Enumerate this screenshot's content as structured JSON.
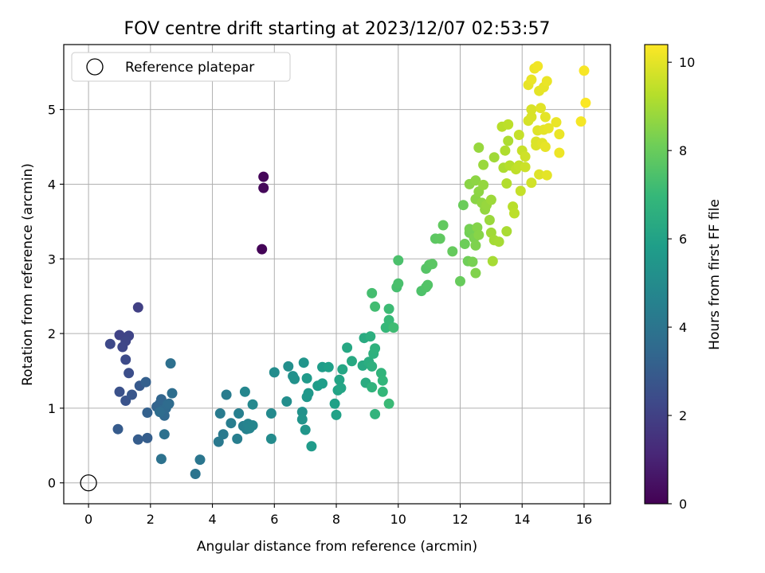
{
  "chart_data": {
    "type": "scatter",
    "title": "FOV centre drift starting at 2023/12/07 02:53:57",
    "xlabel": "Angular distance from reference (arcmin)",
    "ylabel": "Rotation from reference (arcmin)",
    "xlim": [
      -0.8,
      16.85
    ],
    "ylim": [
      -0.28,
      5.87
    ],
    "xticks": [
      0,
      2,
      4,
      6,
      8,
      10,
      12,
      14,
      16
    ],
    "yticks": [
      0,
      1,
      2,
      3,
      4,
      5
    ],
    "grid": true,
    "legend": {
      "placement": "top-left",
      "label": "Reference platepar",
      "marker": "open-circle"
    },
    "reference_point": {
      "x": 0,
      "y": 0
    },
    "colorbar": {
      "label": "Hours from first FF file",
      "range": [
        0,
        10.4
      ],
      "ticks": [
        0,
        2,
        4,
        6,
        8,
        10
      ],
      "colormap": "viridis"
    },
    "series": [
      {
        "points": [
          [
            5.6,
            3.13,
            0.1
          ],
          [
            5.65,
            4.1,
            0.15
          ],
          [
            5.65,
            3.95,
            0.2
          ],
          [
            1.6,
            2.35,
            2.0
          ],
          [
            1.0,
            1.98,
            2.1
          ],
          [
            1.3,
            1.97,
            2.15
          ],
          [
            1.2,
            1.9,
            2.2
          ],
          [
            1.1,
            1.82,
            2.25
          ],
          [
            0.7,
            1.86,
            2.3
          ],
          [
            1.2,
            1.65,
            2.4
          ],
          [
            1.3,
            1.47,
            2.5
          ],
          [
            1.0,
            1.22,
            2.6
          ],
          [
            1.2,
            1.1,
            2.7
          ],
          [
            1.4,
            1.18,
            2.8
          ],
          [
            1.65,
            1.3,
            2.9
          ],
          [
            0.95,
            0.72,
            3.0
          ],
          [
            1.6,
            0.58,
            3.05
          ],
          [
            1.9,
            0.6,
            3.1
          ],
          [
            1.85,
            1.35,
            3.15
          ],
          [
            1.9,
            0.94,
            3.2
          ],
          [
            2.2,
            1.02,
            3.3
          ],
          [
            2.3,
            1.06,
            3.35
          ],
          [
            2.35,
            1.12,
            3.4
          ],
          [
            2.4,
            0.98,
            3.45
          ],
          [
            2.45,
            0.9,
            3.5
          ],
          [
            2.5,
            1.0,
            3.55
          ],
          [
            2.55,
            1.05,
            3.6
          ],
          [
            2.6,
            1.06,
            3.65
          ],
          [
            2.3,
            0.95,
            3.7
          ],
          [
            2.7,
            1.2,
            3.75
          ],
          [
            2.65,
            1.6,
            3.8
          ],
          [
            2.45,
            0.65,
            3.85
          ],
          [
            2.35,
            0.32,
            3.9
          ],
          [
            3.45,
            0.12,
            4.0
          ],
          [
            3.6,
            0.31,
            4.1
          ],
          [
            4.2,
            0.55,
            4.2
          ],
          [
            4.35,
            0.65,
            4.25
          ],
          [
            4.25,
            0.93,
            4.3
          ],
          [
            4.45,
            1.18,
            4.35
          ],
          [
            4.6,
            0.8,
            4.4
          ],
          [
            4.8,
            0.59,
            4.45
          ],
          [
            4.85,
            0.93,
            4.5
          ],
          [
            5.0,
            0.76,
            4.55
          ],
          [
            5.1,
            0.72,
            4.6
          ],
          [
            5.15,
            0.79,
            4.65
          ],
          [
            5.2,
            0.73,
            4.7
          ],
          [
            5.3,
            0.77,
            4.75
          ],
          [
            5.05,
            1.22,
            4.8
          ],
          [
            5.3,
            1.05,
            4.85
          ],
          [
            5.9,
            0.93,
            4.95
          ],
          [
            5.9,
            0.59,
            5.0
          ],
          [
            6.0,
            1.48,
            5.05
          ],
          [
            6.4,
            1.09,
            5.1
          ],
          [
            6.45,
            1.56,
            5.15
          ],
          [
            6.6,
            1.43,
            5.2
          ],
          [
            6.65,
            1.39,
            5.25
          ],
          [
            6.9,
            0.95,
            5.3
          ],
          [
            6.9,
            0.85,
            5.35
          ],
          [
            6.95,
            1.61,
            5.4
          ],
          [
            7.0,
            0.71,
            5.45
          ],
          [
            7.05,
            1.15,
            5.5
          ],
          [
            7.1,
            1.2,
            5.55
          ],
          [
            7.05,
            1.4,
            5.6
          ],
          [
            7.2,
            0.49,
            5.65
          ],
          [
            7.4,
            1.3,
            5.7
          ],
          [
            7.55,
            1.55,
            5.75
          ],
          [
            7.55,
            1.33,
            5.8
          ],
          [
            7.75,
            1.55,
            5.85
          ],
          [
            7.95,
            1.06,
            5.9
          ],
          [
            8.0,
            0.91,
            5.95
          ],
          [
            8.05,
            1.24,
            6.0
          ],
          [
            8.1,
            1.38,
            6.05
          ],
          [
            8.15,
            1.27,
            6.1
          ],
          [
            8.2,
            1.52,
            6.15
          ],
          [
            8.35,
            1.81,
            6.2
          ],
          [
            8.5,
            1.63,
            6.25
          ],
          [
            8.85,
            1.57,
            6.3
          ],
          [
            8.9,
            1.94,
            6.35
          ],
          [
            8.95,
            1.34,
            6.4
          ],
          [
            9.05,
            1.62,
            6.45
          ],
          [
            9.1,
            1.96,
            6.5
          ],
          [
            9.15,
            1.56,
            6.55
          ],
          [
            9.2,
            1.73,
            6.6
          ],
          [
            9.25,
            1.8,
            6.65
          ],
          [
            9.15,
            1.28,
            6.7
          ],
          [
            9.25,
            0.92,
            6.75
          ],
          [
            9.45,
            1.47,
            6.8
          ],
          [
            9.5,
            1.37,
            6.85
          ],
          [
            9.5,
            1.22,
            6.9
          ],
          [
            9.6,
            2.08,
            6.95
          ],
          [
            9.7,
            2.18,
            7.0
          ],
          [
            9.7,
            1.06,
            7.05
          ],
          [
            9.7,
            2.33,
            7.1
          ],
          [
            9.85,
            2.08,
            7.15
          ],
          [
            9.25,
            2.36,
            7.2
          ],
          [
            9.15,
            2.54,
            7.25
          ],
          [
            9.95,
            2.62,
            7.3
          ],
          [
            10.0,
            2.67,
            7.35
          ],
          [
            10.0,
            2.98,
            7.4
          ],
          [
            10.75,
            2.57,
            7.45
          ],
          [
            10.9,
            2.62,
            7.5
          ],
          [
            10.95,
            2.65,
            7.55
          ],
          [
            10.9,
            2.87,
            7.6
          ],
          [
            11.0,
            2.92,
            7.65
          ],
          [
            11.1,
            2.93,
            7.7
          ],
          [
            11.2,
            3.27,
            7.75
          ],
          [
            11.35,
            3.27,
            7.8
          ],
          [
            11.45,
            3.45,
            7.85
          ],
          [
            11.75,
            3.1,
            7.9
          ],
          [
            12.0,
            2.7,
            7.95
          ],
          [
            12.1,
            3.72,
            8.0
          ],
          [
            12.15,
            3.2,
            8.05
          ],
          [
            12.25,
            2.97,
            8.1
          ],
          [
            12.3,
            3.35,
            8.15
          ],
          [
            12.3,
            3.4,
            8.2
          ],
          [
            12.4,
            2.96,
            8.25
          ],
          [
            12.45,
            3.28,
            8.3
          ],
          [
            12.5,
            3.18,
            8.35
          ],
          [
            12.5,
            2.81,
            8.4
          ],
          [
            12.55,
            3.42,
            8.45
          ],
          [
            12.6,
            3.32,
            8.5
          ],
          [
            12.5,
            3.8,
            8.55
          ],
          [
            12.6,
            3.9,
            8.6
          ],
          [
            12.7,
            3.75,
            8.65
          ],
          [
            12.8,
            3.66,
            8.7
          ],
          [
            12.85,
            3.72,
            8.75
          ],
          [
            12.95,
            3.52,
            8.8
          ],
          [
            13.0,
            3.79,
            8.85
          ],
          [
            13.0,
            3.35,
            8.9
          ],
          [
            13.1,
            3.25,
            8.95
          ],
          [
            13.05,
            2.97,
            9.0
          ],
          [
            12.3,
            4.0,
            8.55
          ],
          [
            12.5,
            4.05,
            8.6
          ],
          [
            12.75,
            3.99,
            8.7
          ],
          [
            12.6,
            4.49,
            8.75
          ],
          [
            12.75,
            4.26,
            8.8
          ],
          [
            13.1,
            4.36,
            8.9
          ],
          [
            13.25,
            3.23,
            9.0
          ],
          [
            13.5,
            3.37,
            9.05
          ],
          [
            13.55,
            4.58,
            9.1
          ],
          [
            13.4,
            4.22,
            9.1
          ],
          [
            13.45,
            4.45,
            9.15
          ],
          [
            13.5,
            4.01,
            9.2
          ],
          [
            13.6,
            4.25,
            9.25
          ],
          [
            13.7,
            3.7,
            9.3
          ],
          [
            13.75,
            3.61,
            9.35
          ],
          [
            13.8,
            4.2,
            9.4
          ],
          [
            13.9,
            4.25,
            9.45
          ],
          [
            13.95,
            3.91,
            9.5
          ],
          [
            14.0,
            4.45,
            9.55
          ],
          [
            14.1,
            4.23,
            9.6
          ],
          [
            14.1,
            4.37,
            9.65
          ],
          [
            14.3,
            4.02,
            9.7
          ],
          [
            13.35,
            4.77,
            9.3
          ],
          [
            13.55,
            4.8,
            9.35
          ],
          [
            13.9,
            4.66,
            9.5
          ],
          [
            14.2,
            4.85,
            9.75
          ],
          [
            14.3,
            4.9,
            9.8
          ],
          [
            14.3,
            5.0,
            9.8
          ],
          [
            14.45,
            4.52,
            9.85
          ],
          [
            14.45,
            4.57,
            9.85
          ],
          [
            14.5,
            4.72,
            9.9
          ],
          [
            14.55,
            4.13,
            9.9
          ],
          [
            14.6,
            5.02,
            9.95
          ],
          [
            14.65,
            4.55,
            9.95
          ],
          [
            14.7,
            4.73,
            10.0
          ],
          [
            14.75,
            4.9,
            10.0
          ],
          [
            14.75,
            4.5,
            10.05
          ],
          [
            14.8,
            4.12,
            10.0
          ],
          [
            14.85,
            4.75,
            10.05
          ],
          [
            15.1,
            4.83,
            10.1
          ],
          [
            15.2,
            4.67,
            10.1
          ],
          [
            15.2,
            4.42,
            10.15
          ],
          [
            14.55,
            5.25,
            10.0
          ],
          [
            14.7,
            5.3,
            10.05
          ],
          [
            14.8,
            5.38,
            10.1
          ],
          [
            14.2,
            5.33,
            10.05
          ],
          [
            14.3,
            5.4,
            10.1
          ],
          [
            14.4,
            5.55,
            10.15
          ],
          [
            14.5,
            5.58,
            10.2
          ],
          [
            15.9,
            4.84,
            10.25
          ],
          [
            16.0,
            5.52,
            10.3
          ],
          [
            16.05,
            5.09,
            10.35
          ]
        ]
      }
    ]
  }
}
